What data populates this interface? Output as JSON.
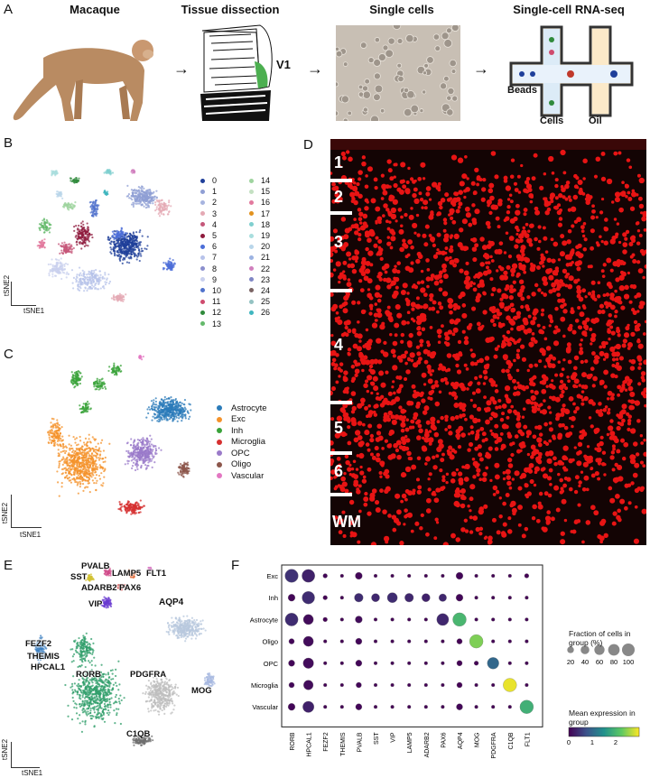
{
  "panel_letters": {
    "a": "A",
    "b": "B",
    "c": "C",
    "d": "D",
    "e": "E",
    "f": "F"
  },
  "panel_a": {
    "stages": [
      "Macaque",
      "Tissue dissection",
      "Single cells",
      "Single-cell RNA-seq"
    ],
    "v1_label": "V1",
    "beads_label": "Beads",
    "cells_label": "Cells",
    "oil_label": "Oil"
  },
  "panel_b": {
    "axis_x": "tSNE1",
    "axis_y": "tSNE2",
    "clusters": [
      "0",
      "1",
      "2",
      "3",
      "4",
      "5",
      "6",
      "7",
      "8",
      "9",
      "10",
      "11",
      "12",
      "13",
      "14",
      "15",
      "16",
      "17",
      "18",
      "19",
      "20",
      "21",
      "22",
      "23",
      "24",
      "25",
      "26"
    ],
    "colors": [
      "#1f3f9a",
      "#8f9fd4",
      "#a7b4df",
      "#e4a9b4",
      "#c5577a",
      "#8f1b3d",
      "#4c6ed8",
      "#b7c3ea",
      "#8b8fcd",
      "#c9d0ee",
      "#5072cc",
      "#cf4b6e",
      "#2f8a3b",
      "#64b96b",
      "#9fd49f",
      "#c4e0c2",
      "#e27a9e",
      "#e2921e",
      "#7fcfcf",
      "#a9dede",
      "#b9d6ea",
      "#9cb3e2",
      "#d07fbd",
      "#7f86c4",
      "#7a6464",
      "#94c2c2",
      "#3fb6bf"
    ]
  },
  "panel_c": {
    "axis_x": "tSNE1",
    "axis_y": "tSNE2",
    "types": [
      {
        "name": "Astrocyte",
        "color": "#2b7bb9"
      },
      {
        "name": "Exc",
        "color": "#f4922a"
      },
      {
        "name": "Inh",
        "color": "#3aa33a"
      },
      {
        "name": "Microglia",
        "color": "#d63030"
      },
      {
        "name": "OPC",
        "color": "#9a7ac9"
      },
      {
        "name": "Oligo",
        "color": "#8c564b"
      },
      {
        "name": "Vascular",
        "color": "#e377c2"
      }
    ]
  },
  "panel_d": {
    "layers": [
      "1",
      "2",
      "3",
      "4",
      "5",
      "6",
      "WM"
    ]
  },
  "panel_e": {
    "axis_x": "tSNE1",
    "axis_y": "tSNE2",
    "labels": [
      "PVALB",
      "SST",
      "LAMP5",
      "FLT1",
      "ADARB2",
      "PAX6",
      "VIP",
      "AQP4",
      "FEZF2",
      "THEMIS",
      "HPCAL1",
      "RORB",
      "PDGFRA",
      "MOG",
      "C1QB"
    ]
  },
  "chart_data": {
    "type": "scatter",
    "subtype": "dotplot",
    "x_genes": [
      "RORB",
      "HPCAL1",
      "FEZF2",
      "THEMIS",
      "PVALB",
      "SST",
      "VIP",
      "LAMP5",
      "ADARB2",
      "PAX6",
      "AQP4",
      "MOG",
      "PDGFRA",
      "C1QB",
      "FLT1"
    ],
    "y_groups": [
      "Exc",
      "Inh",
      "Astrocyte",
      "Oligo",
      "OPC",
      "Microglia",
      "Vascular"
    ],
    "size_legend_title": "Fraction of cells in group (%)",
    "size_legend_values": [
      20,
      40,
      60,
      80,
      100
    ],
    "color_legend_title": "Mean expression in group",
    "color_range": [
      0,
      3
    ],
    "color_ticks": [
      "0",
      "1",
      "2"
    ],
    "cells": [
      {
        "group": "Exc",
        "values": [
          [
            0.95,
            0.45
          ],
          [
            0.9,
            0.3
          ],
          [
            0.05,
            0.05
          ],
          [
            0.02,
            0.02
          ],
          [
            0.2,
            0.06
          ],
          [
            0.02,
            0.02
          ],
          [
            0.02,
            0.02
          ],
          [
            0.02,
            0.02
          ],
          [
            0.02,
            0.02
          ],
          [
            0.02,
            0.02
          ],
          [
            0.2,
            0.05
          ],
          [
            0.02,
            0.02
          ],
          [
            0.02,
            0.02
          ],
          [
            0.02,
            0.02
          ],
          [
            0.05,
            0.02
          ]
        ]
      },
      {
        "group": "Inh",
        "values": [
          [
            0.2,
            0.05
          ],
          [
            0.85,
            0.4
          ],
          [
            0.05,
            0.02
          ],
          [
            0.02,
            0.02
          ],
          [
            0.35,
            0.4
          ],
          [
            0.3,
            0.35
          ],
          [
            0.5,
            0.4
          ],
          [
            0.35,
            0.35
          ],
          [
            0.3,
            0.3
          ],
          [
            0.25,
            0.35
          ],
          [
            0.2,
            0.05
          ],
          [
            0.02,
            0.02
          ],
          [
            0.02,
            0.02
          ],
          [
            0.02,
            0.02
          ],
          [
            0.02,
            0.02
          ]
        ]
      },
      {
        "group": "Astrocyte",
        "values": [
          [
            0.9,
            0.4
          ],
          [
            0.5,
            0.1
          ],
          [
            0.05,
            0.02
          ],
          [
            0.02,
            0.02
          ],
          [
            0.2,
            0.1
          ],
          [
            0.02,
            0.02
          ],
          [
            0.02,
            0.02
          ],
          [
            0.02,
            0.02
          ],
          [
            0.02,
            0.02
          ],
          [
            0.75,
            0.35
          ],
          [
            1.0,
            2.0
          ],
          [
            0.02,
            0.02
          ],
          [
            0.02,
            0.02
          ],
          [
            0.02,
            0.02
          ],
          [
            0.02,
            0.02
          ]
        ]
      },
      {
        "group": "Oligo",
        "values": [
          [
            0.1,
            0.05
          ],
          [
            0.5,
            0.1
          ],
          [
            0.02,
            0.02
          ],
          [
            0.02,
            0.02
          ],
          [
            0.15,
            0.05
          ],
          [
            0.02,
            0.02
          ],
          [
            0.02,
            0.02
          ],
          [
            0.02,
            0.02
          ],
          [
            0.02,
            0.02
          ],
          [
            0.02,
            0.02
          ],
          [
            0.1,
            0.02
          ],
          [
            1.0,
            2.4
          ],
          [
            0.02,
            0.02
          ],
          [
            0.02,
            0.02
          ],
          [
            0.02,
            0.02
          ]
        ]
      },
      {
        "group": "OPC",
        "values": [
          [
            0.15,
            0.05
          ],
          [
            0.55,
            0.1
          ],
          [
            0.02,
            0.02
          ],
          [
            0.02,
            0.02
          ],
          [
            0.15,
            0.05
          ],
          [
            0.02,
            0.02
          ],
          [
            0.02,
            0.02
          ],
          [
            0.02,
            0.02
          ],
          [
            0.02,
            0.02
          ],
          [
            0.02,
            0.02
          ],
          [
            0.1,
            0.02
          ],
          [
            0.05,
            0.02
          ],
          [
            0.7,
            1.0
          ],
          [
            0.02,
            0.02
          ],
          [
            0.02,
            0.02
          ]
        ]
      },
      {
        "group": "Microglia",
        "values": [
          [
            0.1,
            0.05
          ],
          [
            0.45,
            0.1
          ],
          [
            0.02,
            0.02
          ],
          [
            0.02,
            0.02
          ],
          [
            0.1,
            0.05
          ],
          [
            0.02,
            0.02
          ],
          [
            0.02,
            0.02
          ],
          [
            0.02,
            0.02
          ],
          [
            0.02,
            0.02
          ],
          [
            0.02,
            0.02
          ],
          [
            0.1,
            0.02
          ],
          [
            0.02,
            0.02
          ],
          [
            0.02,
            0.02
          ],
          [
            1.0,
            2.9
          ],
          [
            0.02,
            0.02
          ]
        ]
      },
      {
        "group": "Vascular",
        "values": [
          [
            0.2,
            0.05
          ],
          [
            0.65,
            0.3
          ],
          [
            0.02,
            0.02
          ],
          [
            0.02,
            0.02
          ],
          [
            0.15,
            0.05
          ],
          [
            0.02,
            0.02
          ],
          [
            0.02,
            0.02
          ],
          [
            0.02,
            0.02
          ],
          [
            0.02,
            0.02
          ],
          [
            0.02,
            0.02
          ],
          [
            0.15,
            0.05
          ],
          [
            0.02,
            0.02
          ],
          [
            0.02,
            0.02
          ],
          [
            0.02,
            0.02
          ],
          [
            1.0,
            1.9
          ]
        ]
      }
    ]
  }
}
